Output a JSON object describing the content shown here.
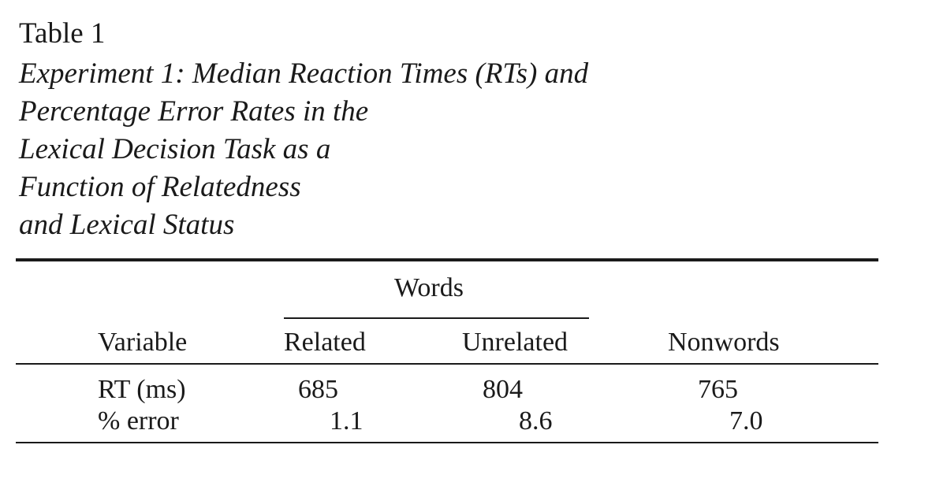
{
  "table": {
    "label": "Table 1",
    "caption_lines": [
      "Experiment 1: Median Reaction Times (RTs) and",
      "Percentage Error Rates in the",
      "Lexical Decision Task as a",
      "Function of Relatedness",
      "and Lexical Status"
    ],
    "spanner": "Words",
    "headers": [
      "Variable",
      "Related",
      "Unrelated",
      "Nonwords"
    ],
    "rows": [
      [
        "RT (ms)",
        "685",
        "804",
        "765"
      ],
      [
        "% error",
        "1.1",
        "8.6",
        "7.0"
      ]
    ]
  }
}
